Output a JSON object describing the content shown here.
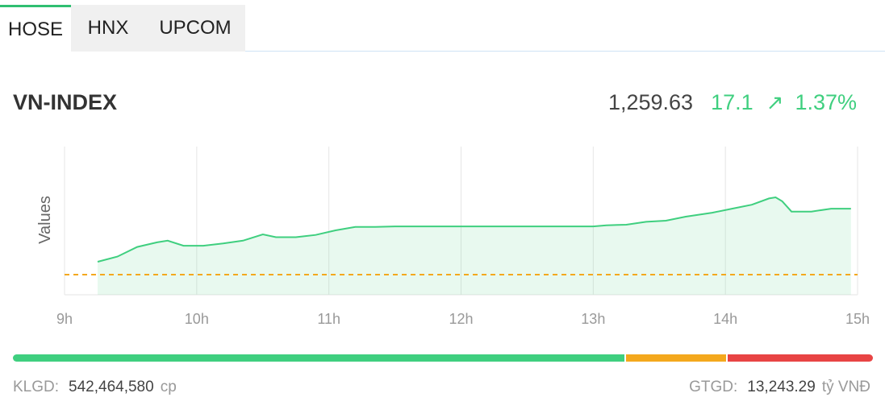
{
  "tabs": [
    {
      "label": "HOSE",
      "active": true
    },
    {
      "label": "HNX",
      "active": false
    },
    {
      "label": "UPCOM",
      "active": false
    }
  ],
  "index": {
    "name": "VN-INDEX",
    "value": "1,259.63",
    "change": "17.1",
    "change_icon": "arrow-up-right-icon",
    "change_pct": "1.37%"
  },
  "colors": {
    "up": "#3fcf7f",
    "reference": "#f4a81d",
    "down": "#e84444",
    "active_tab_accent": "#2fbf71"
  },
  "chart_data": {
    "type": "area",
    "ylabel": "Values",
    "xlabel": "",
    "x_ticks": [
      "9h",
      "10h",
      "11h",
      "12h",
      "13h",
      "14h",
      "15h"
    ],
    "xlim": [
      9,
      15
    ],
    "ylim": [
      1239,
      1265
    ],
    "reference": 1242.53,
    "series": [
      {
        "x": [
          9.25,
          9.4,
          9.55,
          9.7,
          9.78,
          9.9,
          10.05,
          10.2,
          10.35,
          10.5,
          10.6,
          10.75,
          10.9,
          11.05,
          11.2,
          11.35,
          11.5,
          11.65,
          12.0,
          12.5,
          13.0,
          13.1,
          13.25,
          13.4,
          13.55,
          13.7,
          13.9,
          14.05,
          14.2,
          14.33,
          14.38,
          14.43,
          14.5,
          14.65,
          14.8,
          14.95
        ],
        "y": [
          1244.8,
          1245.7,
          1247.4,
          1248.2,
          1248.5,
          1247.6,
          1247.6,
          1248.0,
          1248.5,
          1249.6,
          1249.1,
          1249.1,
          1249.5,
          1250.3,
          1250.9,
          1250.9,
          1251.0,
          1251.0,
          1251.0,
          1251.0,
          1251.0,
          1251.2,
          1251.3,
          1251.8,
          1252.0,
          1252.7,
          1253.4,
          1254.1,
          1254.8,
          1255.9,
          1256.1,
          1255.4,
          1253.6,
          1253.6,
          1254.1,
          1254.1
        ]
      }
    ]
  },
  "summary": {
    "volume_label": "KLGD:",
    "volume_value": "542,464,580",
    "volume_unit": "cp",
    "value_label": "GTGD:",
    "value_value": "13,243.29",
    "value_unit": "tỷ VNĐ"
  }
}
